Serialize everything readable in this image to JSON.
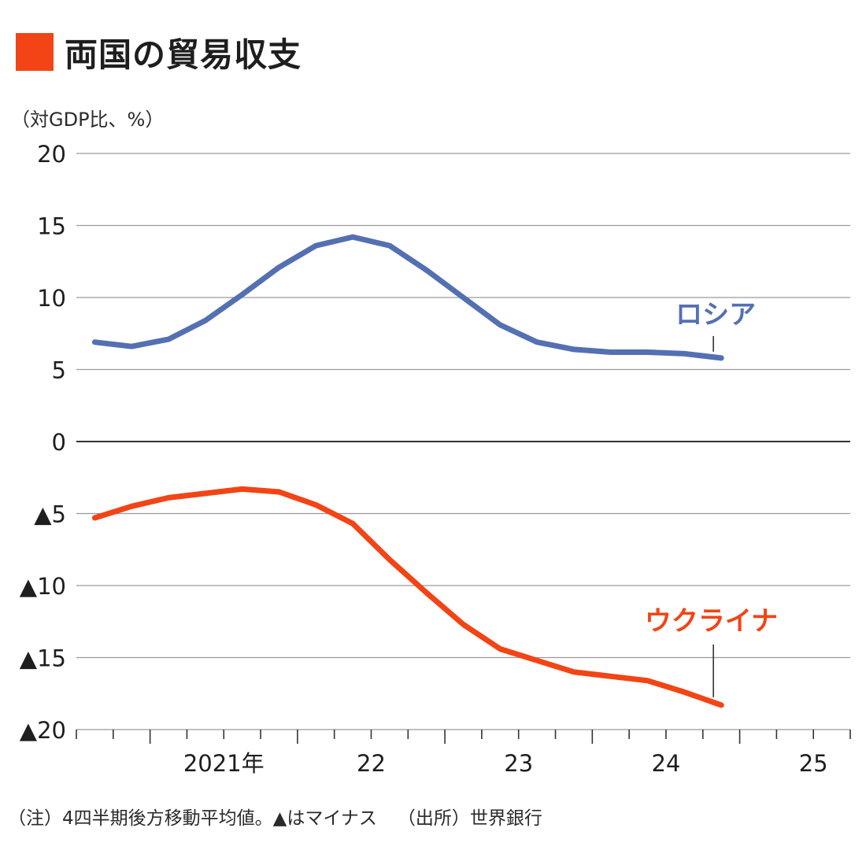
{
  "title": {
    "text": "両国の貿易収支",
    "marker_color": "#f24415"
  },
  "unit_label": "（対GDP比、%）",
  "chart_data": {
    "type": "line",
    "title": "両国の貿易収支",
    "ylabel": "（対GDP比、%）",
    "xlabel": "",
    "ylim": [
      -20,
      20
    ],
    "yticks": [
      20,
      15,
      10,
      5,
      0,
      -5,
      -10,
      -15,
      -20
    ],
    "ytick_labels": [
      "20",
      "15",
      "10",
      "5",
      "0",
      "▲5",
      "▲10",
      "▲15",
      "▲20"
    ],
    "xlim": [
      2020.5,
      2025.75
    ],
    "x_year_ticks": [
      2021,
      2022,
      2023,
      2024,
      2025
    ],
    "x_year_labels": [
      "2021年",
      "22",
      "23",
      "24",
      "25"
    ],
    "grid": true,
    "series": [
      {
        "name": "ロシア",
        "color": "#5470b3",
        "x": [
          2020.625,
          2020.875,
          2021.125,
          2021.375,
          2021.625,
          2021.875,
          2022.125,
          2022.375,
          2022.625,
          2022.875,
          2023.125,
          2023.375,
          2023.625,
          2023.875,
          2024.125,
          2024.375,
          2024.625,
          2024.875
        ],
        "values": [
          6.9,
          6.6,
          7.1,
          8.4,
          10.2,
          12.1,
          13.6,
          14.2,
          13.6,
          11.9,
          10.0,
          8.1,
          6.9,
          6.4,
          6.2,
          6.2,
          6.1,
          5.8
        ]
      },
      {
        "name": "ウクライナ",
        "color": "#f24415",
        "x": [
          2020.625,
          2020.875,
          2021.125,
          2021.375,
          2021.625,
          2021.875,
          2022.125,
          2022.375,
          2022.625,
          2022.875,
          2023.125,
          2023.375,
          2023.625,
          2023.875,
          2024.125,
          2024.375,
          2024.625,
          2024.875
        ],
        "values": [
          -5.3,
          -4.5,
          -3.9,
          -3.6,
          -3.3,
          -3.5,
          -4.4,
          -5.7,
          -8.2,
          -10.5,
          -12.7,
          -14.4,
          -15.2,
          -16.0,
          -16.3,
          -16.6,
          -17.4,
          -18.3
        ]
      }
    ]
  },
  "note": "（注）4四半期後方移動平均値。▲はマイナス",
  "source": "（出所）世界銀行"
}
